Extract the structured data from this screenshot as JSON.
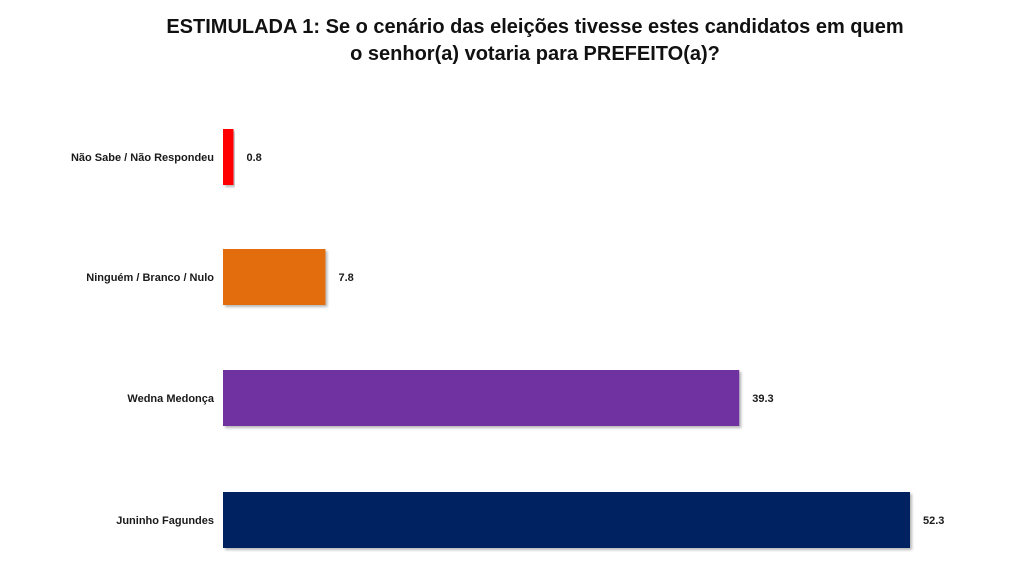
{
  "chart_data": {
    "type": "bar",
    "orientation": "horizontal",
    "title_lines": [
      "ESTIMULADA 1: Se o cenário das eleições tivesse estes candidatos em quem",
      "o senhor(a) votaria para PREFEITO(a)?"
    ],
    "categories": [
      "Não Sabe / Não Respondeu",
      "Ninguém / Branco / Nulo",
      "Wedna Medonça",
      "Juninho Fagundes"
    ],
    "values": [
      0.8,
      7.8,
      39.3,
      52.3
    ],
    "value_labels": [
      "0.8",
      "7.8",
      "39.3",
      "52.3"
    ],
    "colors": [
      "#ff0000",
      "#e36c0a",
      "#7030a0",
      "#002060"
    ],
    "xlim": [
      0,
      52.3
    ],
    "grid": false,
    "legend": "none"
  }
}
